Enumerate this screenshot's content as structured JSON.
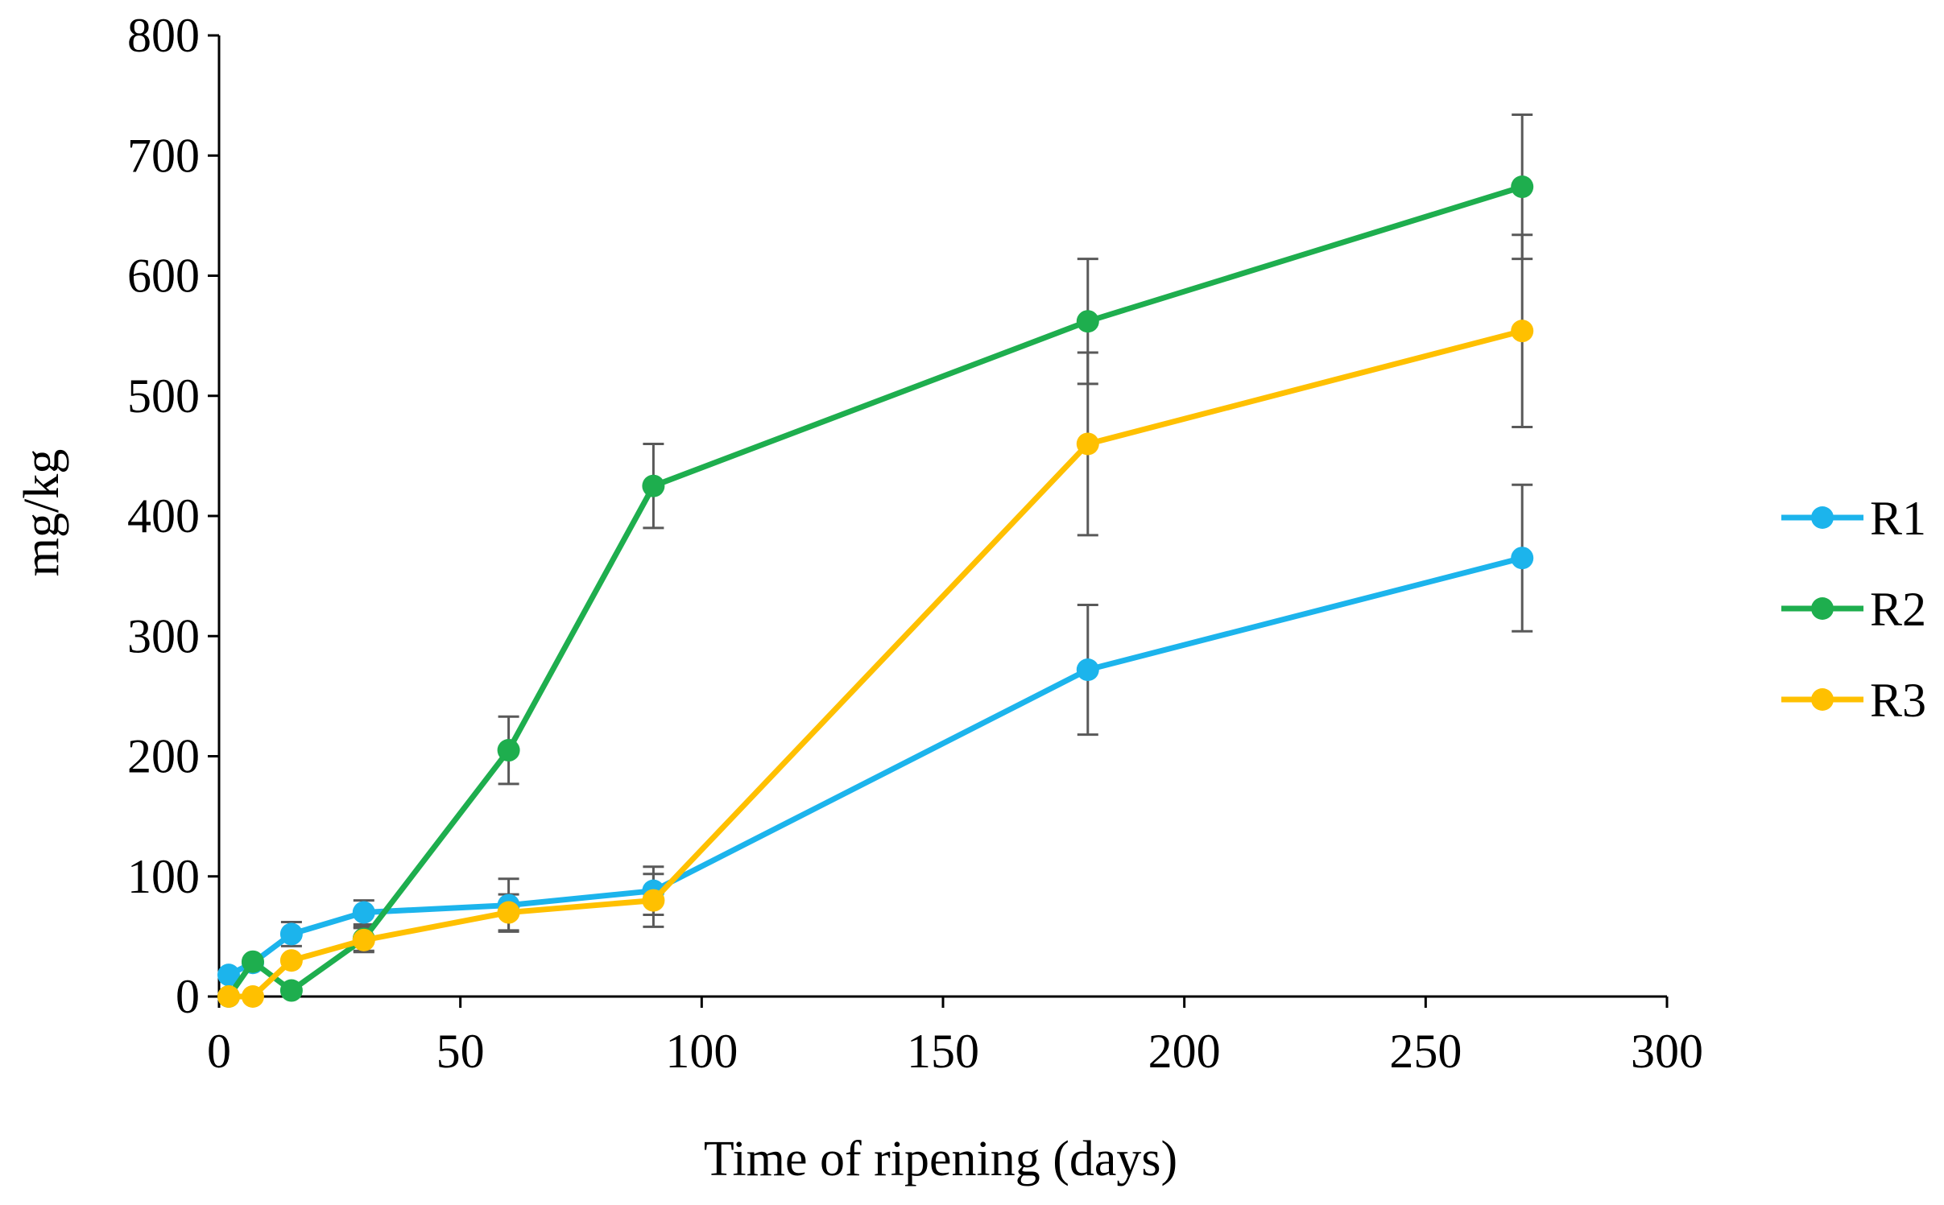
{
  "chart_data": {
    "type": "line",
    "title": "",
    "xlabel": "Time of ripening (days)",
    "ylabel": "mg/kg",
    "xlim": [
      0,
      300
    ],
    "ylim": [
      0,
      800
    ],
    "x_ticks": [
      "0",
      "50",
      "100",
      "150",
      "200",
      "250",
      "300"
    ],
    "y_ticks": [
      "0",
      "100",
      "200",
      "300",
      "400",
      "500",
      "600",
      "700",
      "800"
    ],
    "grid": false,
    "legend_position": "right",
    "error_bar_color": "#595959",
    "series": [
      {
        "name": "R1",
        "color": "#1CB4EC",
        "x": [
          2,
          7,
          15,
          30,
          60,
          90,
          180,
          270
        ],
        "y": [
          18,
          28,
          52,
          70,
          76,
          88,
          272,
          365
        ],
        "err": [
          0,
          0,
          10,
          10,
          22,
          20,
          54,
          61
        ]
      },
      {
        "name": "R2",
        "color": "#1EAE4E",
        "x": [
          2,
          7,
          15,
          30,
          60,
          90,
          180,
          270
        ],
        "y": [
          0,
          29,
          5,
          48,
          205,
          425,
          562,
          674
        ],
        "err": [
          0,
          0,
          0,
          10,
          28,
          35,
          52,
          60
        ]
      },
      {
        "name": "R3",
        "color": "#FFC000",
        "x": [
          2,
          7,
          15,
          30,
          60,
          90,
          180,
          270
        ],
        "y": [
          0,
          0,
          30,
          47,
          70,
          80,
          460,
          554
        ],
        "err": [
          0,
          0,
          0,
          10,
          15,
          22,
          76,
          80
        ]
      }
    ]
  }
}
